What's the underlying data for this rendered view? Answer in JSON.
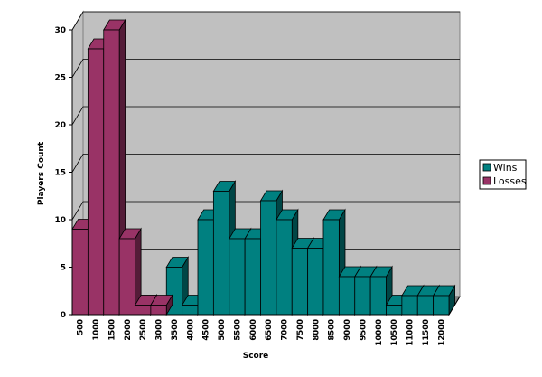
{
  "chart_data": {
    "type": "bar",
    "title": "",
    "xlabel": "Score",
    "ylabel": "Players Count",
    "ylim": [
      0,
      30
    ],
    "yticks": [
      0,
      5,
      10,
      15,
      20,
      25,
      30
    ],
    "grid": true,
    "legend_position": "right",
    "categories": [
      "500",
      "1000",
      "1500",
      "2000",
      "2500",
      "3000",
      "3500",
      "4000",
      "4500",
      "5000",
      "5500",
      "6000",
      "6500",
      "7000",
      "7500",
      "8000",
      "8500",
      "9000",
      "9500",
      "10000",
      "10500",
      "11000",
      "11500",
      "12000"
    ],
    "series": [
      {
        "name": "Wins",
        "color": "#008080",
        "values": [
          0,
          0,
          0,
          0,
          1,
          0,
          5,
          1,
          10,
          13,
          8,
          8,
          12,
          10,
          7,
          7,
          10,
          4,
          4,
          4,
          1,
          2,
          2,
          2
        ]
      },
      {
        "name": "Losses",
        "color": "#993366",
        "values": [
          9,
          28,
          30,
          8,
          1,
          1,
          0,
          0,
          0,
          0,
          0,
          0,
          0,
          0,
          0,
          0,
          0,
          0,
          0,
          0,
          0,
          0,
          0,
          0
        ]
      }
    ]
  }
}
